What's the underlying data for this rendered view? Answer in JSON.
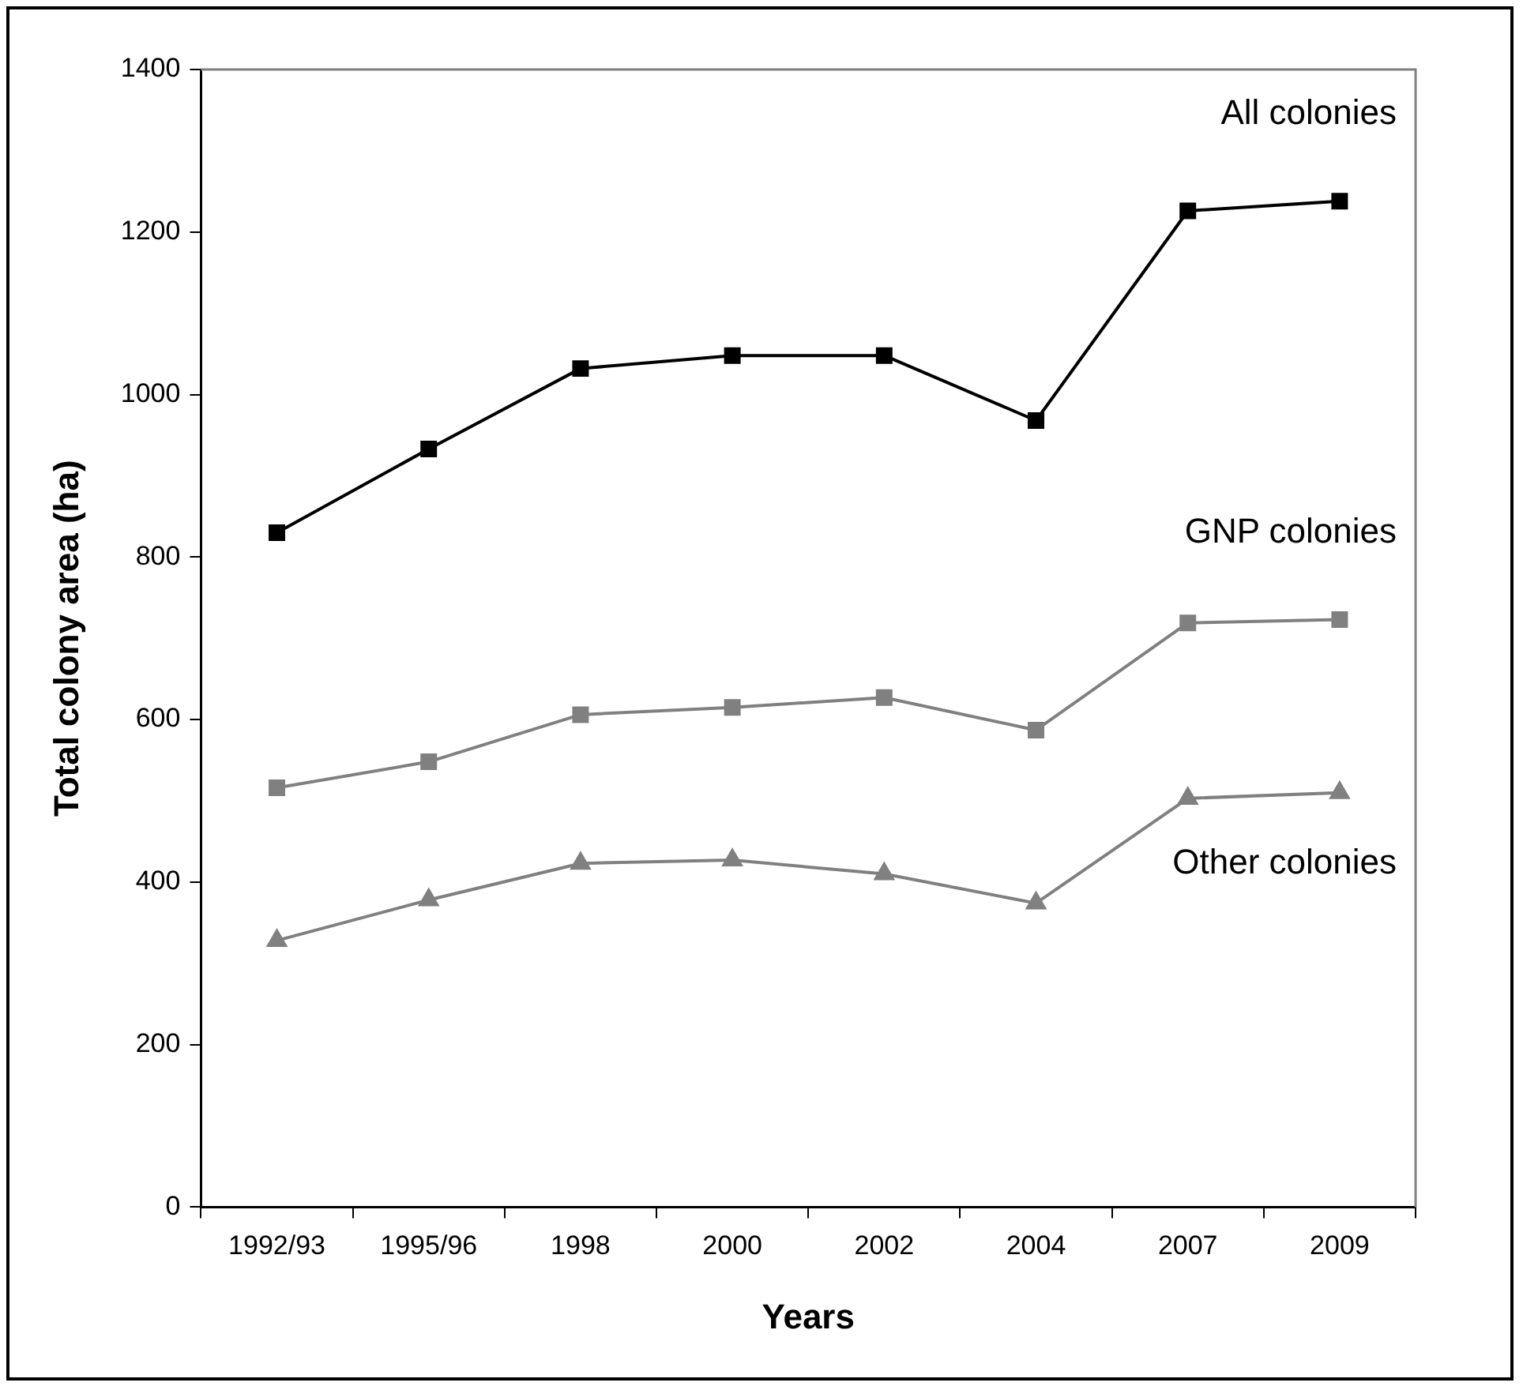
{
  "chart_data": {
    "type": "line",
    "xlabel": "Years",
    "ylabel": "Total colony area (ha)",
    "categories": [
      "1992/93",
      "1995/96",
      "1998",
      "2000",
      "2002",
      "2004",
      "2007",
      "2009"
    ],
    "series": [
      {
        "name": "All colonies",
        "color": "#000000",
        "marker": "square",
        "values": [
          830,
          933,
          1032,
          1048,
          1048,
          968,
          1226,
          1238
        ]
      },
      {
        "name": "GNP colonies",
        "color": "#808080",
        "marker": "square",
        "values": [
          516,
          548,
          606,
          615,
          627,
          587,
          719,
          723
        ]
      },
      {
        "name": "Other colonies",
        "color": "#808080",
        "marker": "triangle",
        "values": [
          328,
          378,
          423,
          427,
          410,
          374,
          503,
          510
        ]
      }
    ],
    "ylim": [
      0,
      1400
    ],
    "yticks": [
      0,
      200,
      400,
      600,
      800,
      1000,
      1200,
      1400
    ],
    "grid": false,
    "legend": false,
    "line_style": "solid"
  }
}
